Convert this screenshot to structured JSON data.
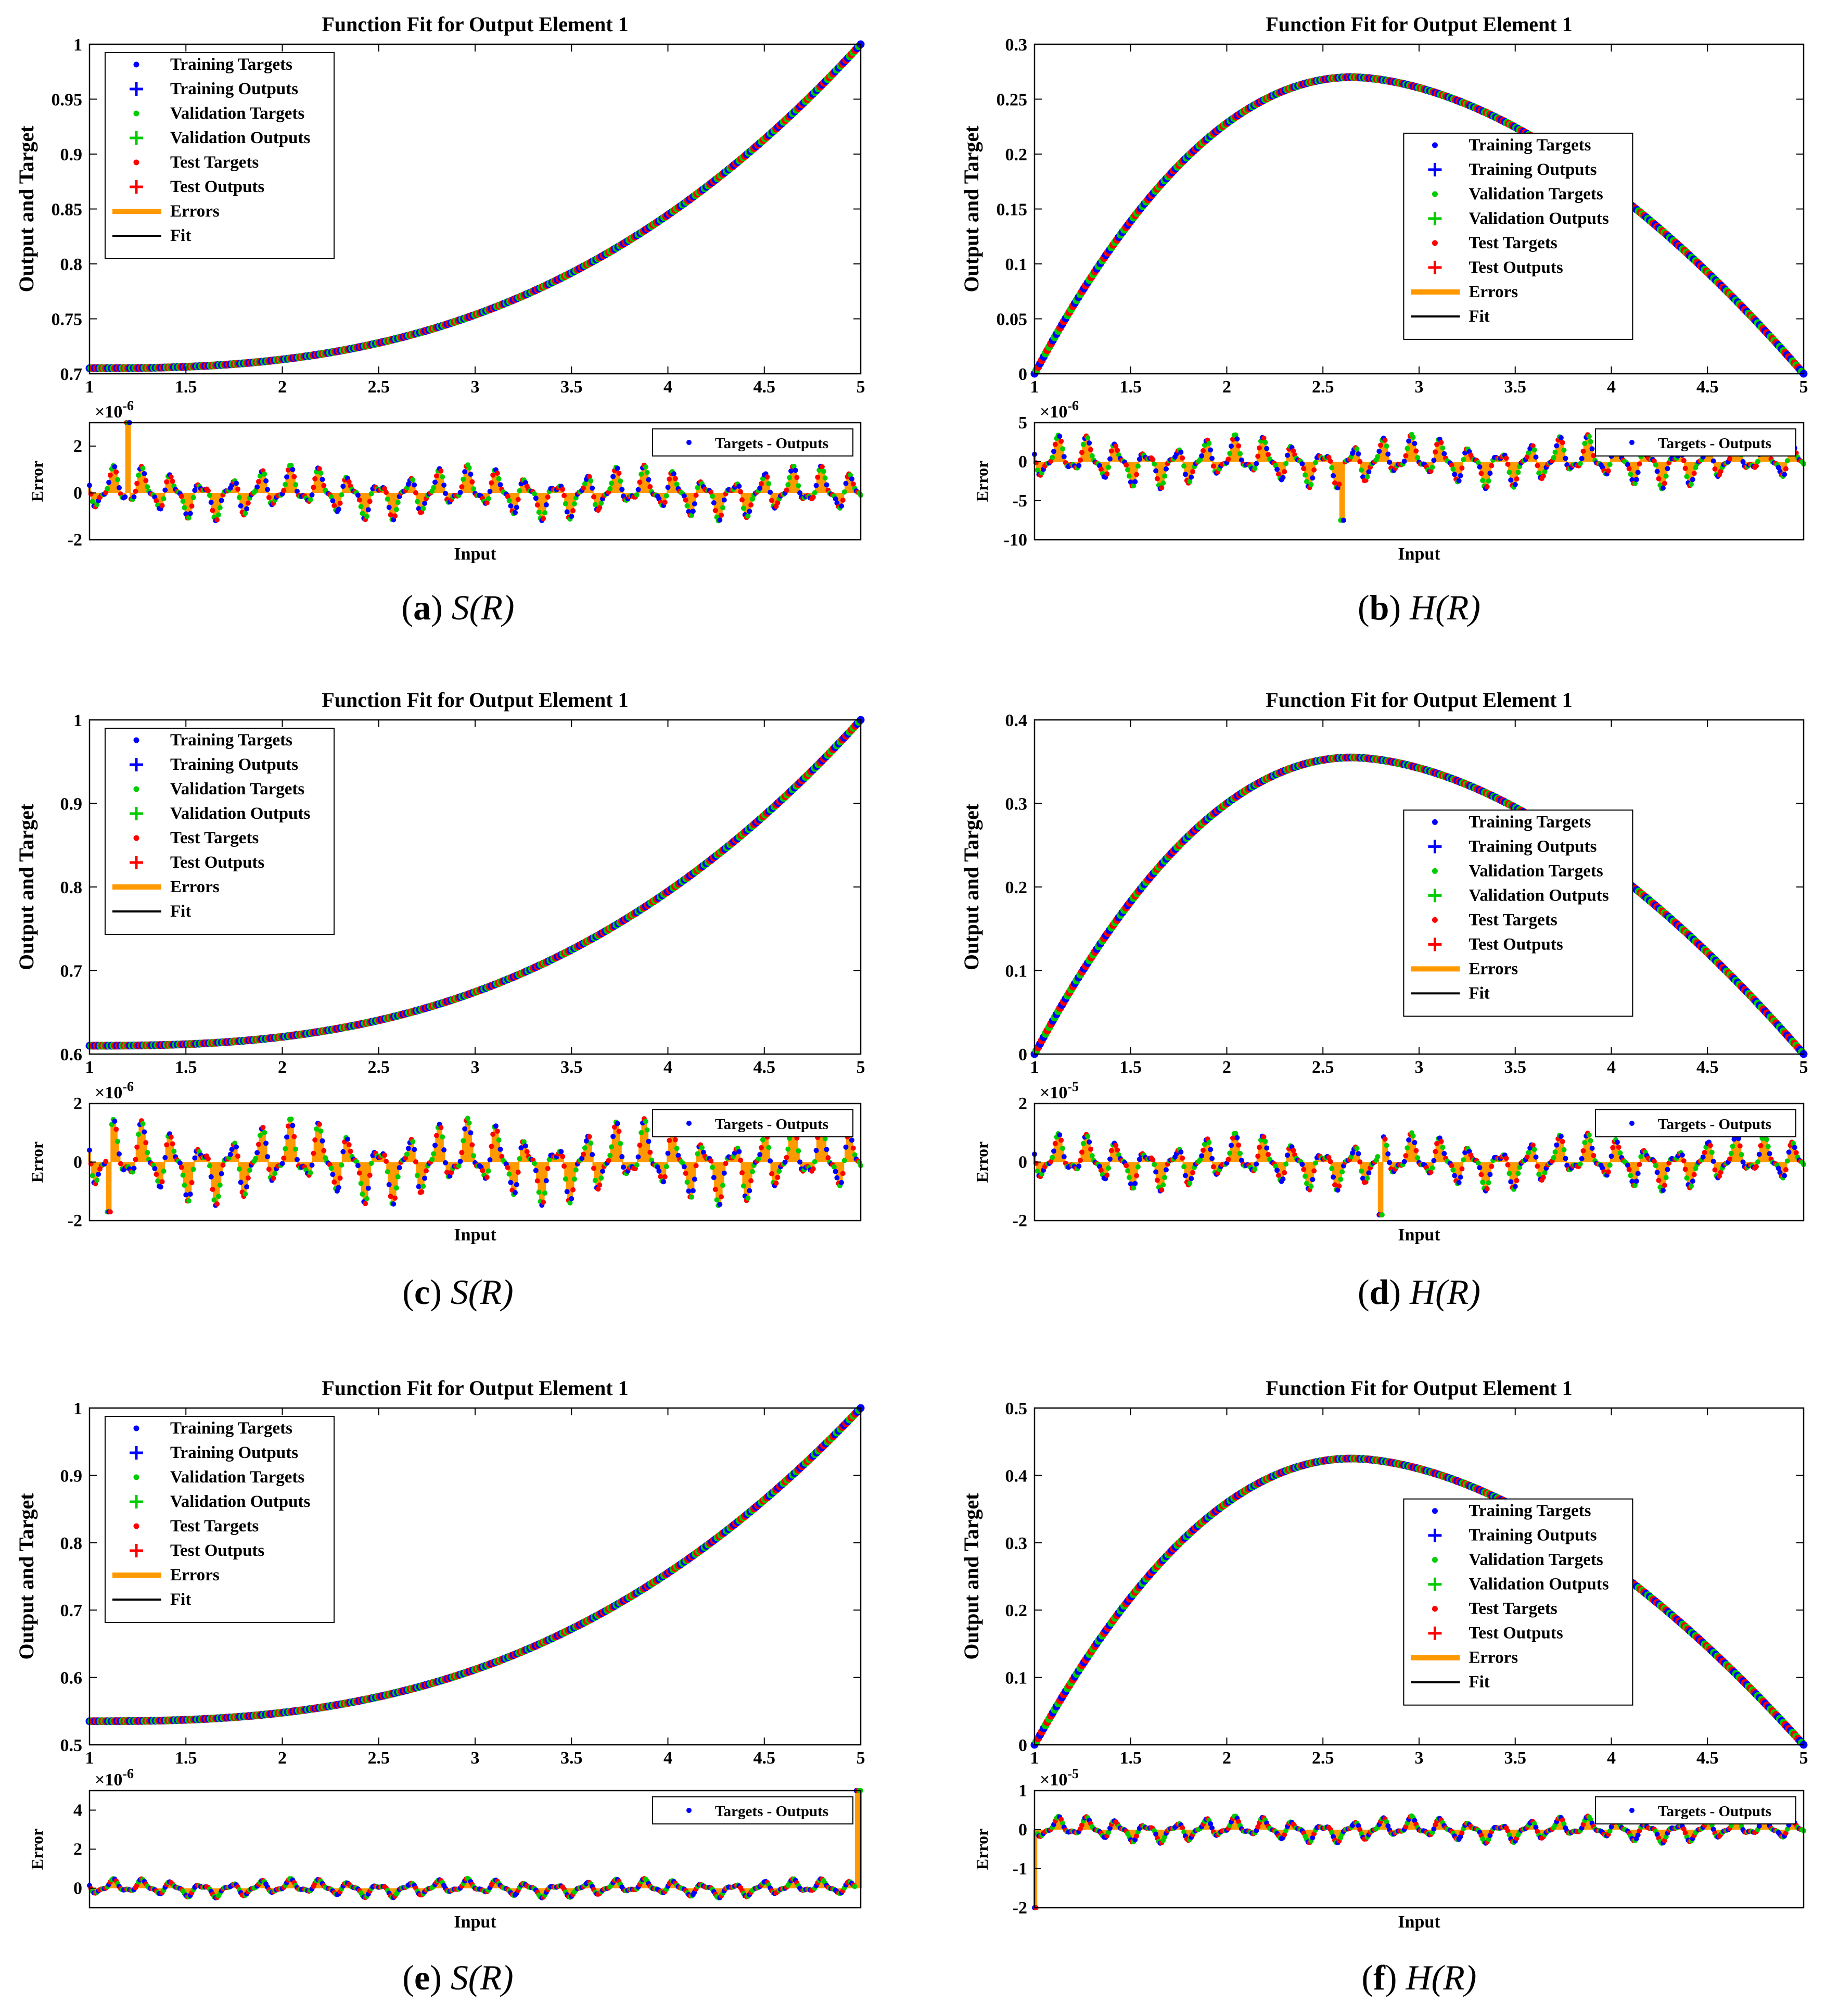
{
  "chart_data": [
    {
      "id": "a",
      "type": "scatter",
      "title": "Function Fit for Output Element 1",
      "ylabel": "Output and Target",
      "xlabel": "Input",
      "error_ylabel": "Error",
      "fn": "S",
      "xlim": [
        1,
        5
      ],
      "ylim": [
        0.7,
        1
      ],
      "yticks": [
        "0.7",
        "0.75",
        "0.8",
        "0.85",
        "0.9",
        "0.95",
        "1"
      ],
      "xticks": [
        "1",
        "1.5",
        "2",
        "2.5",
        "3",
        "3.5",
        "4",
        "4.5",
        "5"
      ],
      "error_ylim": [
        -2,
        3
      ],
      "error_yticks": [
        "-2",
        "0",
        "2"
      ],
      "error_exponent": "-6",
      "curve": {
        "kind": "S",
        "y_start": 0.705,
        "y_end": 1.0
      },
      "error_profile": {
        "amplitude": 1.2,
        "spike_at_x": 1.2,
        "spike_value": 3.3,
        "end_value": 0.5
      },
      "legend_position": "top-left",
      "caption": {
        "letter": "a",
        "text": "S(R)"
      }
    },
    {
      "id": "b",
      "type": "scatter",
      "title": "Function Fit for Output Element 1",
      "ylabel": "Output and Target",
      "xlabel": "Input",
      "error_ylabel": "Error",
      "fn": "H",
      "xlim": [
        1,
        5
      ],
      "ylim": [
        0,
        0.3
      ],
      "yticks": [
        "0",
        "0.05",
        "0.1",
        "0.15",
        "0.2",
        "0.25",
        "0.3"
      ],
      "xticks": [
        "1",
        "1.5",
        "2",
        "2.5",
        "3",
        "3.5",
        "4",
        "4.5",
        "5"
      ],
      "error_ylim": [
        -10,
        5
      ],
      "error_yticks": [
        "-10",
        "-5",
        "0",
        "5"
      ],
      "error_exponent": "-6",
      "curve": {
        "kind": "H",
        "peak": 0.27,
        "peak_x": 2.65
      },
      "error_profile": {
        "amplitude": 3.5,
        "spike_at_x": 2.6,
        "spike_value": -7.5,
        "end_value": -2
      },
      "legend_position": "center-right",
      "caption": {
        "letter": "b",
        "text": "H(R)"
      }
    },
    {
      "id": "c",
      "type": "scatter",
      "title": "Function Fit for Output Element 1",
      "ylabel": "Output and Target",
      "xlabel": "Input",
      "error_ylabel": "Error",
      "fn": "S",
      "xlim": [
        1,
        5
      ],
      "ylim": [
        0.6,
        1
      ],
      "yticks": [
        "0.6",
        "0.7",
        "0.8",
        "0.9",
        "1"
      ],
      "xticks": [
        "1",
        "1.5",
        "2",
        "2.5",
        "3",
        "3.5",
        "4",
        "4.5",
        "5"
      ],
      "error_ylim": [
        -2,
        2
      ],
      "error_yticks": [
        "-2",
        "0",
        "2"
      ],
      "error_exponent": "-6",
      "curve": {
        "kind": "S",
        "y_start": 0.61,
        "y_end": 1.0
      },
      "error_profile": {
        "amplitude": 1.5,
        "spike_at_x": 1.1,
        "spike_value": -1.7,
        "end_value": 0.3
      },
      "legend_position": "top-left",
      "caption": {
        "letter": "c",
        "text": "S(R)"
      }
    },
    {
      "id": "d",
      "type": "scatter",
      "title": "Function Fit for Output Element 1",
      "ylabel": "Output and Target",
      "xlabel": "Input",
      "error_ylabel": "Error",
      "fn": "H",
      "xlim": [
        1,
        5
      ],
      "ylim": [
        0,
        0.4
      ],
      "yticks": [
        "0",
        "0.1",
        "0.2",
        "0.3",
        "0.4"
      ],
      "xticks": [
        "1",
        "1.5",
        "2",
        "2.5",
        "3",
        "3.5",
        "4",
        "4.5",
        "5"
      ],
      "error_ylim": [
        -2,
        2
      ],
      "error_yticks": [
        "-2",
        "0",
        "2"
      ],
      "error_exponent": "-5",
      "curve": {
        "kind": "H",
        "peak": 0.355,
        "peak_x": 2.65
      },
      "error_profile": {
        "amplitude": 1.0,
        "spike_at_x": 2.8,
        "spike_value": -1.8,
        "end_value": 0.9
      },
      "legend_position": "center-right",
      "caption": {
        "letter": "d",
        "text": "H(R)"
      }
    },
    {
      "id": "e",
      "type": "scatter",
      "title": "Function Fit for Output Element 1",
      "ylabel": "Output and Target",
      "xlabel": "Input",
      "error_ylabel": "Error",
      "fn": "S",
      "xlim": [
        1,
        5
      ],
      "ylim": [
        0.5,
        1
      ],
      "yticks": [
        "0.5",
        "0.6",
        "0.7",
        "0.8",
        "0.9",
        "1"
      ],
      "xticks": [
        "1",
        "1.5",
        "2",
        "2.5",
        "3",
        "3.5",
        "4",
        "4.5",
        "5"
      ],
      "error_ylim": [
        -1,
        5
      ],
      "error_yticks": [
        "0",
        "2",
        "4"
      ],
      "error_exponent": "-6",
      "curve": {
        "kind": "S",
        "y_start": 0.535,
        "y_end": 1.0
      },
      "error_profile": {
        "amplitude": 0.5,
        "spike_at_x": 4.99,
        "spike_value": 5.2,
        "end_value": 0.2
      },
      "legend_position": "top-left",
      "caption": {
        "letter": "e",
        "text": "S(R)"
      }
    },
    {
      "id": "f",
      "type": "scatter",
      "title": "Function Fit for Output Element 1",
      "ylabel": "Output and Target",
      "xlabel": "Input",
      "error_ylabel": "Error",
      "fn": "H",
      "xlim": [
        1,
        5
      ],
      "ylim": [
        0,
        0.5
      ],
      "yticks": [
        "0",
        "0.1",
        "0.2",
        "0.3",
        "0.4",
        "0.5"
      ],
      "xticks": [
        "1",
        "1.5",
        "2",
        "2.5",
        "3",
        "3.5",
        "4",
        "4.5",
        "5"
      ],
      "error_ylim": [
        -2,
        1
      ],
      "error_yticks": [
        "-2",
        "-1",
        "0",
        "1"
      ],
      "error_exponent": "-5",
      "curve": {
        "kind": "H",
        "peak": 0.425,
        "peak_x": 2.65
      },
      "error_profile": {
        "amplitude": 0.35,
        "spike_at_x": 1.0,
        "spike_value": -2.0,
        "end_value": -0.2
      },
      "legend_position": "center-right",
      "caption": {
        "letter": "f",
        "text": "H(R)"
      }
    }
  ],
  "legend": [
    "Training Targets",
    "Training Outputs",
    "Validation Targets",
    "Validation Outputs",
    "Test Targets",
    "Test Outputs",
    "Errors",
    "Fit"
  ],
  "error_legend": "Targets - Outputs",
  "colors": {
    "training": "#0000ff",
    "validation": "#00cc00",
    "test": "#ff0000",
    "errors": "#ff9900",
    "fit": "#000000",
    "axis": "#000000"
  }
}
